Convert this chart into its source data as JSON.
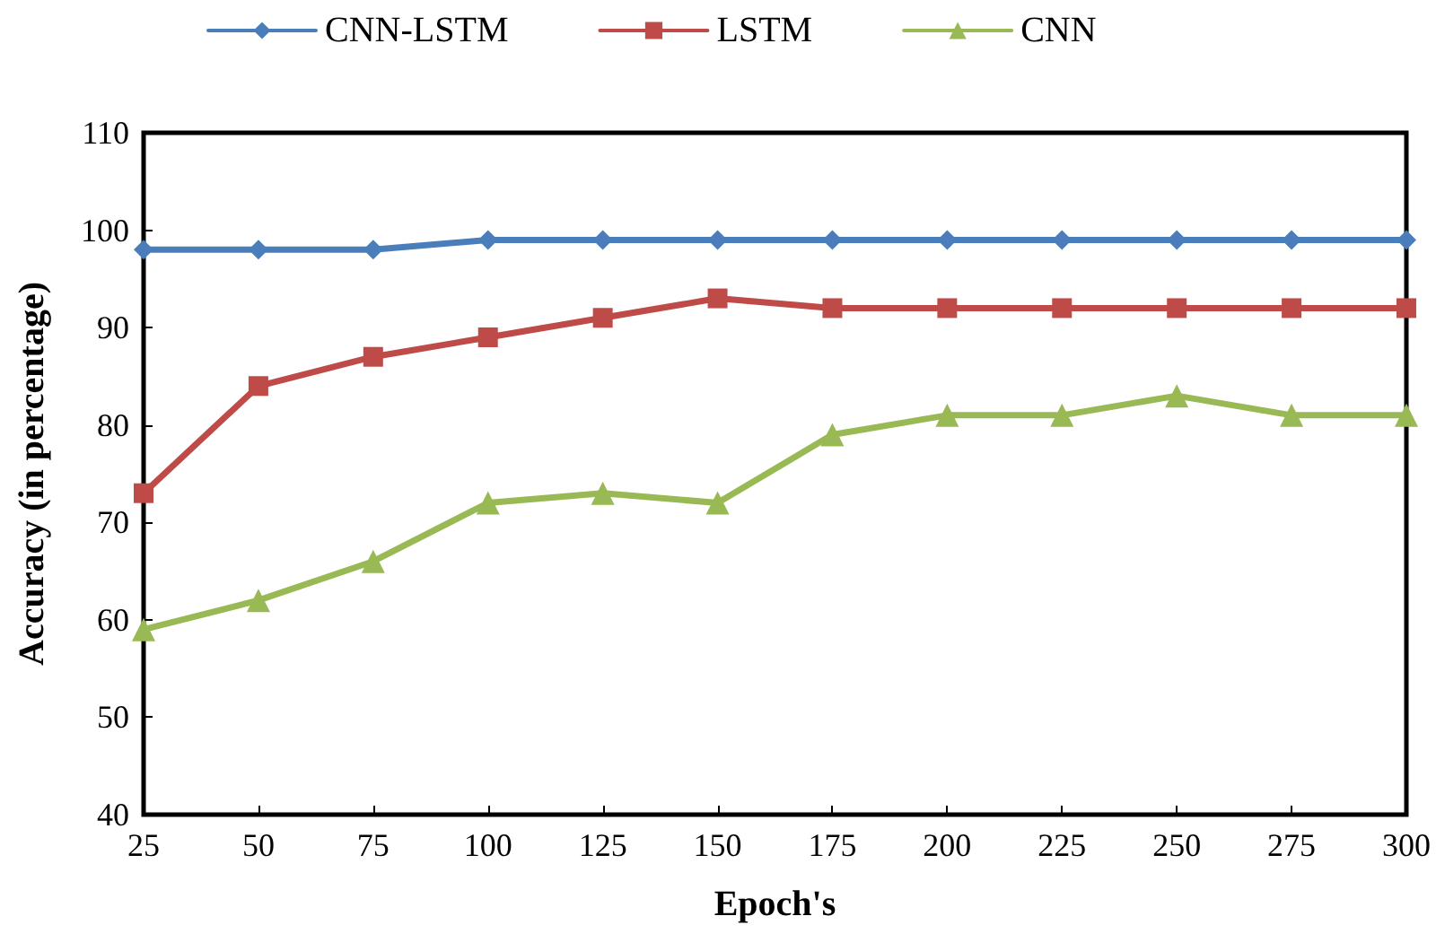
{
  "chart_data": {
    "type": "line",
    "xlabel": "Epoch's",
    "ylabel": "Accuracy (in percentage)",
    "categories": [
      "25",
      "50",
      "75",
      "100",
      "125",
      "150",
      "175",
      "200",
      "225",
      "250",
      "275",
      "300"
    ],
    "series": [
      {
        "name": "CNN-LSTM",
        "color": "#4a7ebb",
        "marker": "diamond",
        "values": [
          98,
          98,
          98,
          99,
          99,
          99,
          99,
          99,
          99,
          99,
          99,
          99
        ]
      },
      {
        "name": "LSTM",
        "color": "#be4b48",
        "marker": "square",
        "values": [
          73,
          84,
          87,
          89,
          91,
          93,
          92,
          92,
          92,
          92,
          92,
          92
        ]
      },
      {
        "name": "CNN",
        "color": "#98b954",
        "marker": "triangle",
        "values": [
          59,
          62,
          66,
          72,
          73,
          72,
          79,
          81,
          81,
          83,
          81,
          81
        ]
      }
    ],
    "ylim": [
      40,
      110
    ],
    "yticks": [
      40,
      50,
      60,
      70,
      80,
      90,
      100,
      110
    ],
    "grid": false,
    "legend": "top",
    "line_style": "solid"
  }
}
